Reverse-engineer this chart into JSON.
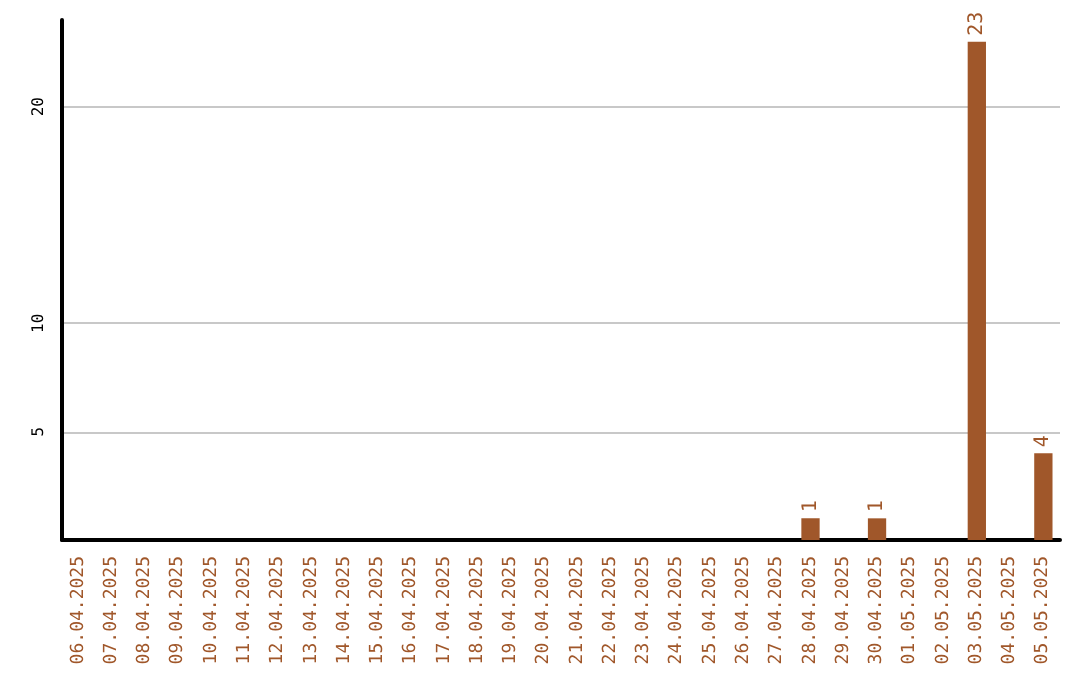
{
  "chart_data": {
    "type": "bar",
    "categories": [
      "06.04.2025",
      "07.04.2025",
      "08.04.2025",
      "09.04.2025",
      "10.04.2025",
      "11.04.2025",
      "12.04.2025",
      "13.04.2025",
      "14.04.2025",
      "15.04.2025",
      "16.04.2025",
      "17.04.2025",
      "18.04.2025",
      "19.04.2025",
      "20.04.2025",
      "21.04.2025",
      "22.04.2025",
      "23.04.2025",
      "24.04.2025",
      "25.04.2025",
      "26.04.2025",
      "27.04.2025",
      "28.04.2025",
      "29.04.2025",
      "30.04.2025",
      "01.05.2025",
      "02.05.2025",
      "03.05.2025",
      "04.05.2025",
      "05.05.2025"
    ],
    "values": [
      0,
      0,
      0,
      0,
      0,
      0,
      0,
      0,
      0,
      0,
      0,
      0,
      0,
      0,
      0,
      0,
      0,
      0,
      0,
      0,
      0,
      0,
      1,
      0,
      1,
      0,
      0,
      23,
      0,
      4
    ],
    "value_labels": [
      null,
      null,
      null,
      null,
      null,
      null,
      null,
      null,
      null,
      null,
      null,
      null,
      null,
      null,
      null,
      null,
      null,
      null,
      null,
      null,
      null,
      null,
      "1",
      null,
      "1",
      null,
      null,
      "23",
      null,
      "4"
    ],
    "color": "#a0572a",
    "ylim": [
      0,
      24
    ],
    "yticks": [
      5,
      10,
      20
    ],
    "grid": "y"
  }
}
